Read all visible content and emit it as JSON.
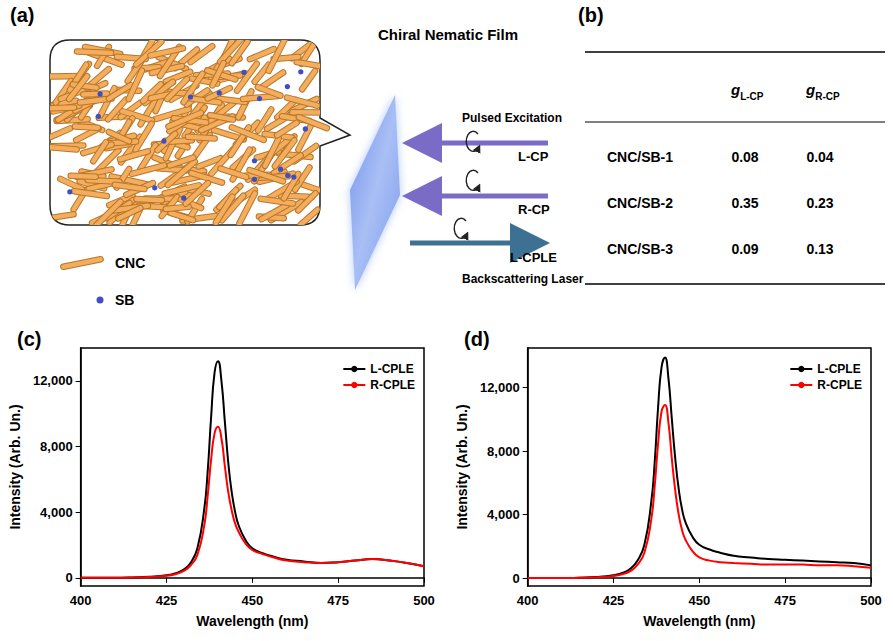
{
  "diagram": {
    "label": "(a)",
    "title": "Chiral Nematic Film",
    "legend": [
      "CNC",
      "SB"
    ],
    "excitation": "Pulsed Excitation",
    "arrows": [
      "L-CP",
      "R-CP"
    ],
    "emission": "L-CPLE",
    "emission_caption": "Backscattering Laser"
  },
  "table": {
    "label": "(b)",
    "header": [
      {
        "main": "g",
        "sub": "L-CP"
      },
      {
        "main": "g",
        "sub": "R-CP"
      }
    ],
    "rows": [
      [
        "CNC/SB-1",
        0.08,
        0.04
      ],
      [
        "CNC/SB-2",
        0.35,
        0.23
      ],
      [
        "CNC/SB-3",
        0.09,
        0.13
      ]
    ]
  },
  "chart_data": [
    {
      "type": "line",
      "title": "(c)",
      "x_label": "Wavelength (nm)",
      "y_label": "Intensity (Arb. Un.)",
      "x": [
        400,
        405,
        410,
        415,
        420,
        425,
        428,
        430,
        432,
        434,
        436,
        437,
        438,
        439,
        440,
        441,
        442,
        443,
        444,
        445,
        446,
        448,
        450,
        453,
        456,
        460,
        465,
        470,
        475,
        480,
        485,
        490,
        495,
        500
      ],
      "series": [
        {
          "name": "L-CPLE",
          "color": "#000000",
          "values": [
            0,
            0,
            0,
            20,
            60,
            150,
            300,
            500,
            900,
            1800,
            4200,
            6500,
            9800,
            12500,
            13200,
            12000,
            9500,
            7000,
            5200,
            4000,
            3200,
            2300,
            1800,
            1500,
            1300,
            1100,
            1000,
            900,
            950,
            1050,
            1150,
            1050,
            900,
            700
          ]
        },
        {
          "name": "R-CPLE",
          "color": "#ff0000",
          "values": [
            0,
            0,
            0,
            20,
            50,
            120,
            250,
            420,
            750,
            1400,
            3200,
            5000,
            7200,
            8800,
            9200,
            8500,
            6800,
            5200,
            4100,
            3300,
            2800,
            2100,
            1700,
            1450,
            1250,
            1050,
            950,
            900,
            950,
            1050,
            1150,
            1050,
            900,
            700
          ]
        }
      ],
      "xlim": [
        400,
        500
      ],
      "xticks": [
        400,
        425,
        450,
        475,
        500
      ],
      "ylim": [
        -500,
        14000
      ],
      "yticks": [
        0,
        4000,
        8000,
        12000
      ],
      "legend": "upper right",
      "grid": false
    },
    {
      "type": "line",
      "title": "(d)",
      "x_label": "Wavelength (nm)",
      "y_label": "Intensity (Arb. Un.)",
      "x": [
        400,
        405,
        410,
        415,
        420,
        425,
        428,
        430,
        432,
        434,
        436,
        437,
        438,
        439,
        440,
        441,
        442,
        443,
        444,
        445,
        446,
        448,
        450,
        453,
        456,
        460,
        465,
        470,
        475,
        480,
        485,
        490,
        495,
        500
      ],
      "series": [
        {
          "name": "L-CPLE",
          "color": "#000000",
          "values": [
            0,
            0,
            0,
            20,
            60,
            180,
            350,
            600,
            1100,
            2100,
            4800,
            7300,
            10800,
            13300,
            13900,
            12600,
            10000,
            7500,
            5600,
            4300,
            3500,
            2600,
            2100,
            1800,
            1600,
            1400,
            1300,
            1200,
            1150,
            1100,
            1050,
            1000,
            950,
            800
          ]
        },
        {
          "name": "R-CPLE",
          "color": "#ff0000",
          "values": [
            0,
            0,
            0,
            20,
            50,
            130,
            270,
            450,
            850,
            1600,
            3700,
            5800,
            8500,
            10500,
            10900,
            9800,
            7500,
            5500,
            4000,
            3000,
            2400,
            1700,
            1300,
            1100,
            1000,
            950,
            900,
            850,
            850,
            850,
            800,
            800,
            750,
            650
          ]
        }
      ],
      "xlim": [
        400,
        500
      ],
      "xticks": [
        400,
        425,
        450,
        475,
        500
      ],
      "ylim": [
        -500,
        14500
      ],
      "yticks": [
        0,
        4000,
        8000,
        12000
      ],
      "legend": "upper right",
      "grid": false
    }
  ]
}
